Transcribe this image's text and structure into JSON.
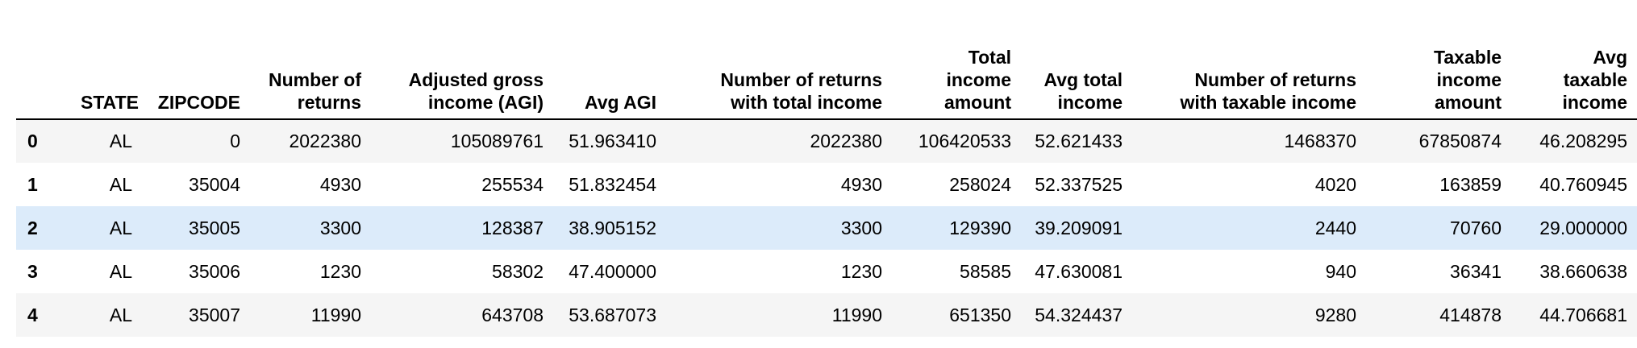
{
  "table": {
    "columns": [
      {
        "key": "index",
        "label": ""
      },
      {
        "key": "state",
        "label": "STATE"
      },
      {
        "key": "zipcode",
        "label": "ZIPCODE"
      },
      {
        "key": "num_returns",
        "label": "Number of returns"
      },
      {
        "key": "agi",
        "label": "Adjusted gross income (AGI)"
      },
      {
        "key": "avg_agi",
        "label": "Avg AGI"
      },
      {
        "key": "num_returns_total_income",
        "label": "Number of returns with total income"
      },
      {
        "key": "total_income_amount",
        "label": "Total income amount"
      },
      {
        "key": "avg_total_income",
        "label": "Avg total income"
      },
      {
        "key": "num_returns_taxable_income",
        "label": "Number of returns with taxable income"
      },
      {
        "key": "taxable_income_amount",
        "label": "Taxable income amount"
      },
      {
        "key": "avg_taxable_income",
        "label": "Avg taxable income"
      }
    ],
    "header_lines": {
      "state": [
        "STATE"
      ],
      "zipcode": [
        "ZIPCODE"
      ],
      "num_returns": [
        "Number of",
        "returns"
      ],
      "agi": [
        "Adjusted gross",
        "income (AGI)"
      ],
      "avg_agi": [
        "Avg AGI"
      ],
      "num_returns_total_income": [
        "Number of returns",
        "with total income"
      ],
      "total_income_amount": [
        "Total",
        "income",
        "amount"
      ],
      "avg_total_income": [
        "Avg total",
        "income"
      ],
      "num_returns_taxable_income": [
        "Number of returns",
        "with taxable income"
      ],
      "taxable_income_amount": [
        "Taxable",
        "income",
        "amount"
      ],
      "avg_taxable_income": [
        "Avg",
        "taxable",
        "income"
      ]
    },
    "rows": [
      {
        "index": "0",
        "state": "AL",
        "zipcode": "0",
        "num_returns": "2022380",
        "agi": "105089761",
        "avg_agi": "51.963410",
        "num_returns_total_income": "2022380",
        "total_income_amount": "106420533",
        "avg_total_income": "52.621433",
        "num_returns_taxable_income": "1468370",
        "taxable_income_amount": "67850874",
        "avg_taxable_income": "46.208295"
      },
      {
        "index": "1",
        "state": "AL",
        "zipcode": "35004",
        "num_returns": "4930",
        "agi": "255534",
        "avg_agi": "51.832454",
        "num_returns_total_income": "4930",
        "total_income_amount": "258024",
        "avg_total_income": "52.337525",
        "num_returns_taxable_income": "4020",
        "taxable_income_amount": "163859",
        "avg_taxable_income": "40.760945"
      },
      {
        "index": "2",
        "state": "AL",
        "zipcode": "35005",
        "num_returns": "3300",
        "agi": "128387",
        "avg_agi": "38.905152",
        "num_returns_total_income": "3300",
        "total_income_amount": "129390",
        "avg_total_income": "39.209091",
        "num_returns_taxable_income": "2440",
        "taxable_income_amount": "70760",
        "avg_taxable_income": "29.000000"
      },
      {
        "index": "3",
        "state": "AL",
        "zipcode": "35006",
        "num_returns": "1230",
        "agi": "58302",
        "avg_agi": "47.400000",
        "num_returns_total_income": "1230",
        "total_income_amount": "58585",
        "avg_total_income": "47.630081",
        "num_returns_taxable_income": "940",
        "taxable_income_amount": "36341",
        "avg_taxable_income": "38.660638"
      },
      {
        "index": "4",
        "state": "AL",
        "zipcode": "35007",
        "num_returns": "11990",
        "agi": "643708",
        "avg_agi": "53.687073",
        "num_returns_total_income": "11990",
        "total_income_amount": "651350",
        "avg_total_income": "54.324437",
        "num_returns_taxable_income": "9280",
        "taxable_income_amount": "414878",
        "avg_taxable_income": "44.706681"
      }
    ],
    "hovered_row": 2,
    "colors": {
      "row_stripe": "#f5f5f5",
      "row_hover": "#dcebfa",
      "header_rule": "#000000"
    }
  }
}
